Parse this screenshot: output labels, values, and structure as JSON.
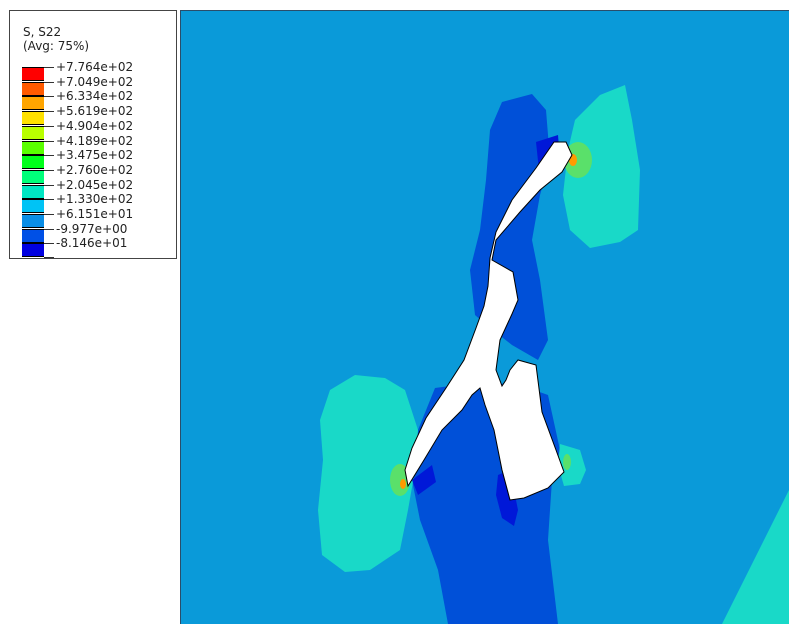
{
  "legend": {
    "variable": "S, S22",
    "averaging": "(Avg: 75%)",
    "entries": [
      {
        "label": "+7.764e+02",
        "color": "#ff0000"
      },
      {
        "label": "+7.049e+02",
        "color": "#ff5a00"
      },
      {
        "label": "+6.334e+02",
        "color": "#ffa500"
      },
      {
        "label": "+5.619e+02",
        "color": "#ffe100"
      },
      {
        "label": "+4.904e+02",
        "color": "#b9ff00"
      },
      {
        "label": "+4.189e+02",
        "color": "#5aff00"
      },
      {
        "label": "+3.475e+02",
        "color": "#00ff1a"
      },
      {
        "label": "+2.760e+02",
        "color": "#00ff7a"
      },
      {
        "label": "+2.045e+02",
        "color": "#00e6c3"
      },
      {
        "label": "+1.330e+02",
        "color": "#00c3f5"
      },
      {
        "label": "+6.151e+01",
        "color": "#0a8ee6"
      },
      {
        "label": "-9.977e+00",
        "color": "#0050e6"
      },
      {
        "label": "-8.146e+01",
        "color": "#0000e0"
      }
    ]
  },
  "contour": {
    "background_color": "#0a9ad9",
    "low_band_color": "#0050d8",
    "lowest_band_color": "#0018d8",
    "high_band_color": "#19d9c8",
    "hotspot_color": "#5ae06a",
    "peak_color": "#ff9a00",
    "crack_color": "#ffffff"
  }
}
